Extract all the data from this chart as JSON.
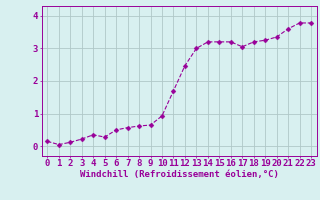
{
  "x": [
    0,
    1,
    2,
    3,
    4,
    5,
    6,
    7,
    8,
    9,
    10,
    11,
    12,
    13,
    14,
    15,
    16,
    17,
    18,
    19,
    20,
    21,
    22,
    23
  ],
  "y": [
    0.15,
    0.05,
    0.12,
    0.22,
    0.35,
    0.28,
    0.5,
    0.57,
    0.62,
    0.65,
    0.93,
    1.7,
    2.47,
    3.0,
    3.2,
    3.2,
    3.2,
    3.05,
    3.2,
    3.25,
    3.35,
    3.6,
    3.78,
    3.78
  ],
  "line_color": "#990099",
  "marker": "D",
  "marker_size": 2.5,
  "background_color": "#d8f0f0",
  "grid_color": "#b0c8c8",
  "xlabel": "Windchill (Refroidissement éolien,°C)",
  "xlabel_fontsize": 6.5,
  "ylabel_ticks": [
    0,
    1,
    2,
    3,
    4
  ],
  "xlim": [
    -0.5,
    23.5
  ],
  "ylim": [
    -0.3,
    4.3
  ],
  "tick_fontsize": 6.5,
  "label_color": "#990099"
}
